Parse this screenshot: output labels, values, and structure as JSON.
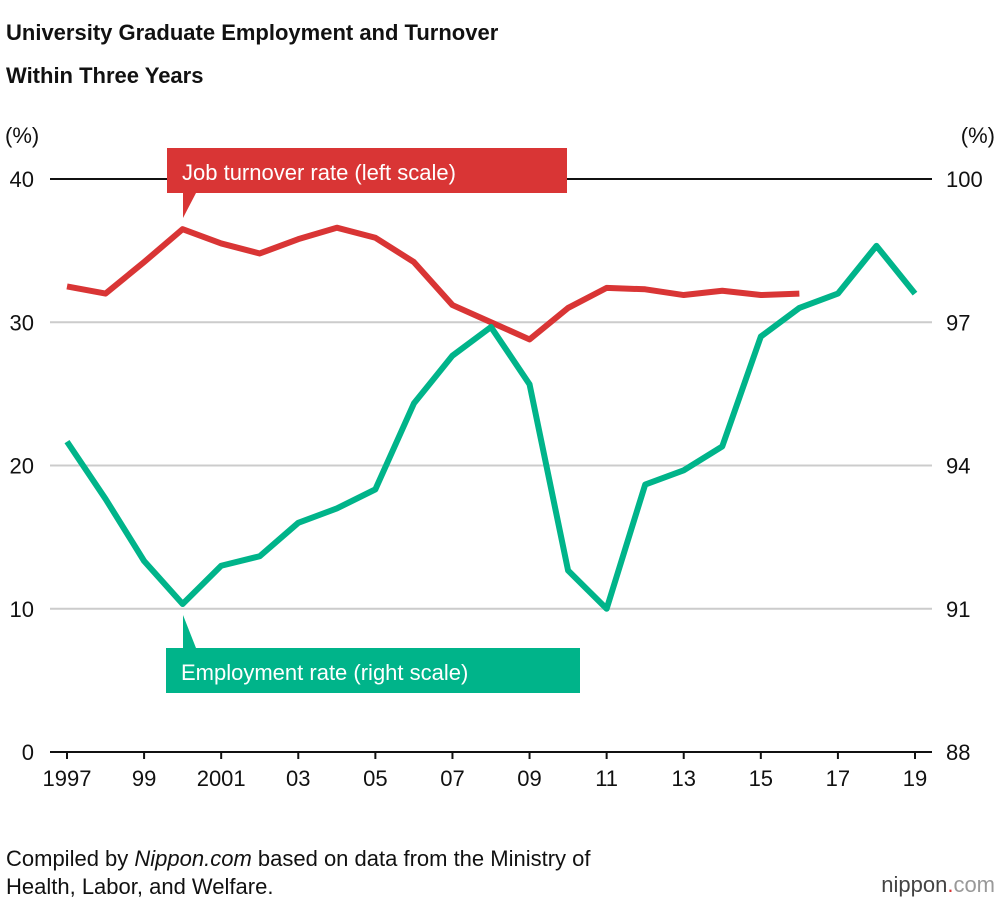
{
  "chart_data": {
    "type": "line",
    "title": [
      "University Graduate Employment and Turnover",
      "Within Three Years"
    ],
    "y_unit": "(%)",
    "y2_unit": "(%)",
    "x": [
      1997,
      1998,
      1999,
      2000,
      2001,
      2002,
      2003,
      2004,
      2005,
      2006,
      2007,
      2008,
      2009,
      2010,
      2011,
      2012,
      2013,
      2014,
      2015,
      2016,
      2017,
      2018,
      2019
    ],
    "xlim": [
      1997,
      2019
    ],
    "xticks": [
      {
        "value": 1997,
        "label": "1997"
      },
      {
        "value": 1999,
        "label": "99"
      },
      {
        "value": 2001,
        "label": "2001"
      },
      {
        "value": 2003,
        "label": "03"
      },
      {
        "value": 2005,
        "label": "05"
      },
      {
        "value": 2007,
        "label": "07"
      },
      {
        "value": 2009,
        "label": "09"
      },
      {
        "value": 2011,
        "label": "11"
      },
      {
        "value": 2013,
        "label": "13"
      },
      {
        "value": 2015,
        "label": "15"
      },
      {
        "value": 2017,
        "label": "17"
      },
      {
        "value": 2019,
        "label": "19"
      }
    ],
    "ylim": [
      0,
      40
    ],
    "yticks": [
      0,
      10,
      20,
      30,
      40
    ],
    "y2lim": [
      88,
      100
    ],
    "y2ticks": [
      88,
      91,
      94,
      97,
      100
    ],
    "grid": true,
    "series": [
      {
        "name": "Job turnover rate (left scale)",
        "color": "#d93535",
        "axis": "y",
        "values": [
          32.5,
          32.0,
          34.2,
          36.5,
          35.5,
          34.8,
          35.8,
          36.6,
          35.9,
          34.2,
          31.2,
          30.0,
          28.8,
          31.0,
          32.4,
          32.3,
          31.9,
          32.2,
          31.9,
          32.0,
          null,
          null,
          null
        ]
      },
      {
        "name": "Employment rate (right scale)",
        "color": "#00b48a",
        "axis": "y2",
        "values": [
          94.5,
          93.3,
          92.0,
          91.1,
          91.9,
          92.1,
          92.8,
          93.1,
          93.5,
          95.3,
          96.3,
          96.9,
          95.7,
          91.8,
          91.0,
          93.6,
          93.9,
          94.4,
          96.7,
          97.3,
          97.6,
          98.6,
          97.6
        ]
      }
    ],
    "source": [
      "Compiled by ",
      "Nippon.com",
      " based on data from the Ministry of",
      "Health, Labor, and Welfare."
    ],
    "logo": [
      "nippon",
      ".",
      "com"
    ]
  }
}
